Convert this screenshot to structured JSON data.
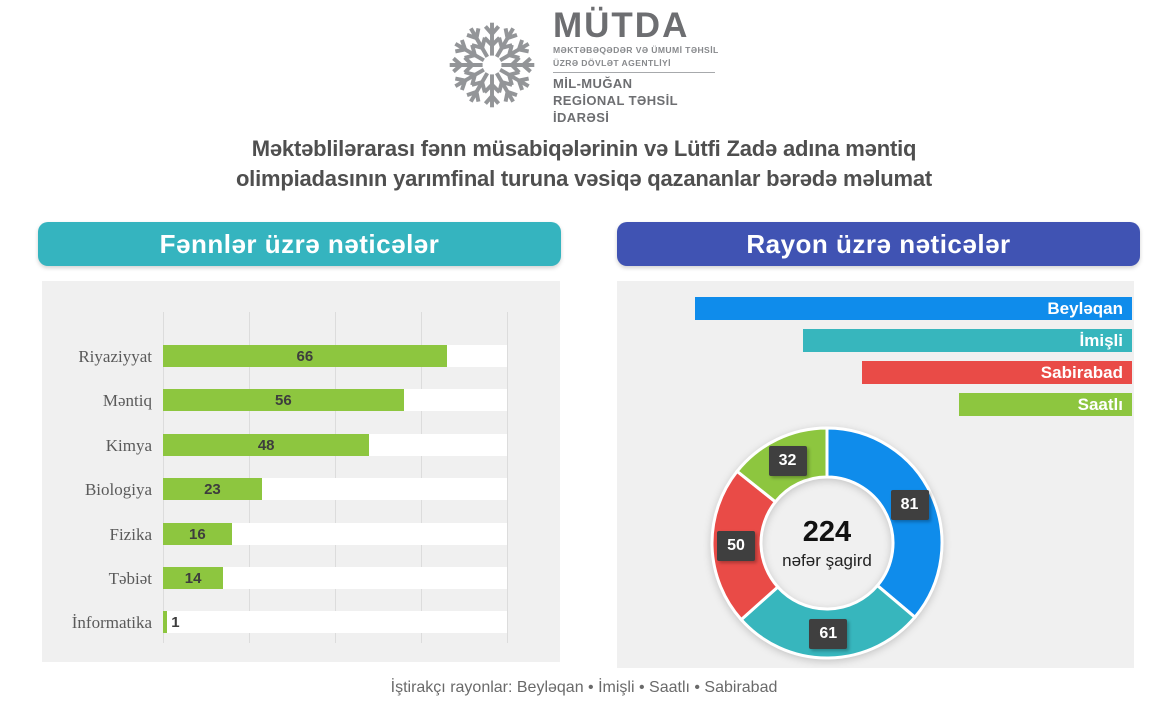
{
  "logo": {
    "acronym": "MÜTDA",
    "agency_line1": "MƏKTƏBƏQƏDƏR VƏ ÜMUMİ TƏHSİL",
    "agency_line2": "ÜZRƏ DÖVLƏT AGENTLİYİ",
    "region_line1": "MİL-MUĞAN",
    "region_line2": "REGİONAL TƏHSİL İDARƏSİ"
  },
  "title": {
    "line1": "Məktəblilərarası fənn müsabiqələrinin və Lütfi Zadə adına məntiq",
    "line2": "olimpiadasının yarımfinal turuna vəsiqə qazananlar bərədə məlumat"
  },
  "panels": {
    "subjects_header": "Fənnlər üzrə nəticələr",
    "subjects_header_color": "#35b4bf",
    "districts_header": "Rayon üzrə nəticələr",
    "districts_header_color": "#4053b3",
    "panel_background": "#f0f0f0"
  },
  "footer": {
    "text": "İştirakçı  rayonlar:  Beyləqan • İmişli • Saatlı • Sabirabad"
  },
  "chart_data": [
    {
      "type": "bar",
      "orientation": "horizontal",
      "title": "Fənnlər üzrə nəticələr",
      "categories": [
        "Riyaziyyat",
        "Məntiq",
        "Kimya",
        "Biologiya",
        "Fizika",
        "Təbiət",
        "İnformatika"
      ],
      "values": [
        66,
        56,
        48,
        23,
        16,
        14,
        1
      ],
      "xlim": [
        0,
        80
      ],
      "gridline_step": 20,
      "grid": "on",
      "bar_color": "#8dc63f",
      "track_color": "#ffffff",
      "value_label_position": "inside-center"
    },
    {
      "type": "pie",
      "subtype": "donut",
      "title": "Rayon üzrə nəticələr",
      "slices": [
        {
          "name": "Beyləqan",
          "value": 81,
          "color": "#0f8ceb"
        },
        {
          "name": "İmişli",
          "value": 61,
          "color": "#37b6bd"
        },
        {
          "name": "Sabirabad",
          "value": 50,
          "color": "#e94b47"
        },
        {
          "name": "Saatlı",
          "value": 32,
          "color": "#8dc63f"
        }
      ],
      "start_angle_deg": 0,
      "direction": "clockwise",
      "center": {
        "total": "224",
        "caption": "nəfər şagird"
      },
      "legend_position": "top",
      "legend_style": "right-aligned proportional bars",
      "value_label_box_color": "#3f3f3f"
    }
  ]
}
